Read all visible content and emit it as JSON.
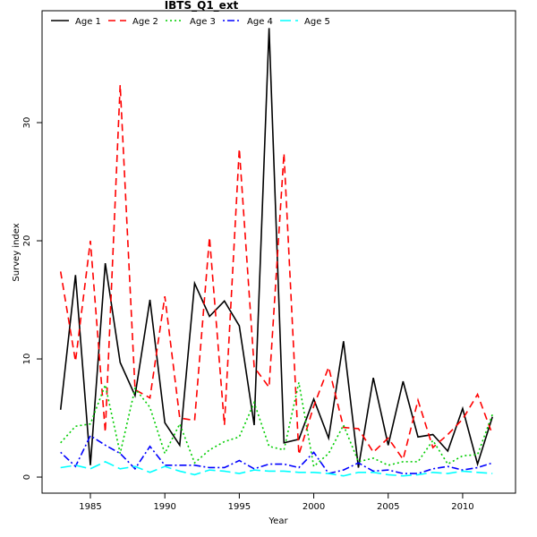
{
  "chart_data": {
    "type": "line",
    "title": "IBTS_Q1_ext",
    "x_label": "Year",
    "y_label": "Survey index",
    "x": [
      1983,
      1984,
      1985,
      1986,
      1987,
      1988,
      1989,
      1990,
      1991,
      1992,
      1993,
      1994,
      1995,
      1996,
      1997,
      1998,
      1999,
      2000,
      2001,
      2002,
      2003,
      2004,
      2005,
      2006,
      2007,
      2008,
      2009,
      2010,
      2011,
      2012
    ],
    "series": [
      {
        "name": "Age 1",
        "color": "#000000",
        "linetype": "solid",
        "values": [
          5.7,
          17.1,
          1.0,
          18.1,
          9.7,
          6.9,
          15.0,
          4.6,
          2.7,
          16.4,
          13.6,
          14.9,
          12.8,
          4.4,
          38.0,
          2.9,
          3.2,
          6.6,
          3.3,
          11.5,
          0.8,
          8.4,
          2.7,
          8.1,
          3.4,
          3.6,
          2.2,
          5.8,
          1.1,
          5.1
        ]
      },
      {
        "name": "Age 2",
        "color": "#ff0000",
        "linetype": "dashed",
        "values": [
          17.4,
          9.8,
          20.0,
          3.8,
          33.2,
          7.4,
          6.7,
          15.3,
          5.0,
          4.8,
          20.3,
          4.4,
          27.8,
          9.3,
          7.6,
          27.4,
          1.9,
          6.0,
          9.3,
          4.2,
          4.1,
          2.1,
          3.3,
          1.5,
          6.5,
          2.5,
          3.6,
          4.9,
          7.0,
          3.6
        ]
      },
      {
        "name": "Age 3",
        "color": "#00cd00",
        "linetype": "dotted",
        "values": [
          2.9,
          4.3,
          4.5,
          7.8,
          2.0,
          7.5,
          5.9,
          2.0,
          4.5,
          1.2,
          2.3,
          3.0,
          3.4,
          6.3,
          2.6,
          2.3,
          8.0,
          0.9,
          2.0,
          4.4,
          1.3,
          1.6,
          1.0,
          1.3,
          1.3,
          3.1,
          1.1,
          1.8,
          1.9,
          5.3
        ]
      },
      {
        "name": "Age 4",
        "color": "#0000ff",
        "linetype": "dotdash",
        "values": [
          2.1,
          0.9,
          3.5,
          2.7,
          2.0,
          0.7,
          2.6,
          1.0,
          1.0,
          1.0,
          0.8,
          0.8,
          1.4,
          0.7,
          1.1,
          1.1,
          0.8,
          2.1,
          0.3,
          0.6,
          1.2,
          0.5,
          0.6,
          0.3,
          0.3,
          0.7,
          0.9,
          0.6,
          0.8,
          1.2
        ]
      },
      {
        "name": "Age 5",
        "color": "#00ffff",
        "linetype": "longdash",
        "values": [
          0.8,
          1.0,
          0.7,
          1.3,
          0.7,
          0.9,
          0.4,
          0.9,
          0.5,
          0.2,
          0.6,
          0.5,
          0.3,
          0.6,
          0.5,
          0.5,
          0.4,
          0.4,
          0.3,
          0.1,
          0.4,
          0.4,
          0.2,
          0.1,
          0.2,
          0.4,
          0.3,
          0.5,
          0.4,
          0.3
        ]
      }
    ],
    "xlim": [
      1981.755,
      2013.55
    ],
    "xticks": [
      1985,
      1990,
      1995,
      2000,
      2005,
      2010
    ],
    "ylim": [
      -1.36,
      39.47
    ],
    "yticks": [
      0,
      10,
      20,
      30
    ],
    "legend": "top-left",
    "grid": false
  }
}
